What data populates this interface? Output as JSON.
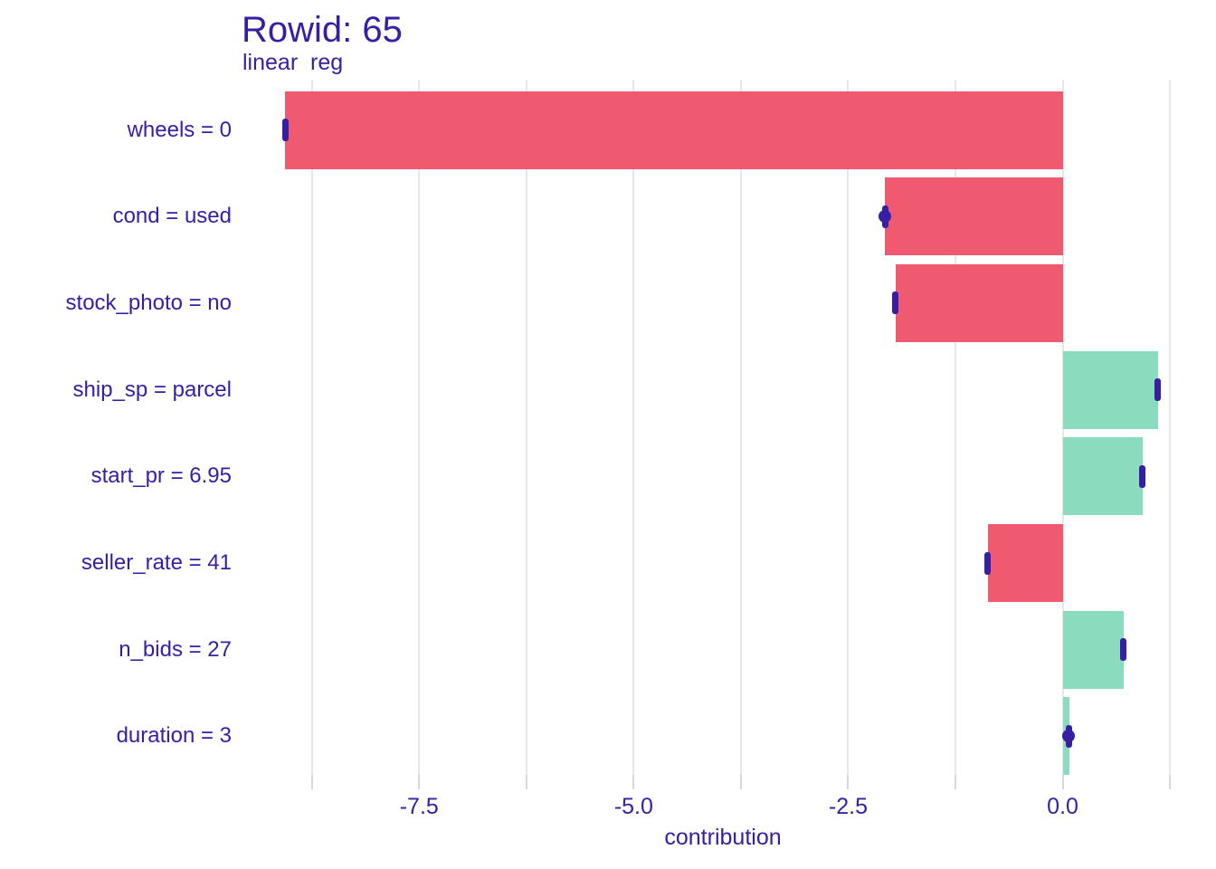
{
  "header": {
    "title": "Rowid: 65",
    "subtitle": "linear  reg"
  },
  "colors": {
    "accent_text": "#371ea3",
    "positive_bar": "#8bdcbe",
    "negative_bar": "#f05a71",
    "boxplot": "#371ea3",
    "gridline": "#e7e7e7",
    "axis_tick": "#d9d9d9",
    "background": "#ffffff"
  },
  "chart_data": {
    "type": "bar",
    "orientation": "horizontal",
    "title": "Rowid: 65",
    "subtitle": "linear  reg",
    "xlabel": "contribution",
    "xlim": [
      -9.58,
      1.66
    ],
    "x_ticks_major": [
      -7.5,
      -5.0,
      -2.5,
      0.0
    ],
    "x_tick_labels": [
      "-7.5",
      "-5.0",
      "-2.5",
      "0.0"
    ],
    "x_ticks_minor": [
      -8.75,
      -6.25,
      -3.75,
      -1.25,
      1.25
    ],
    "grid": true,
    "legend": "none",
    "categories": [
      "wheels = 0",
      "cond = used",
      "stock_photo = no",
      "ship_sp = parcel",
      "start_pr = 6.95",
      "seller_rate = 41",
      "n_bids = 27",
      "duration = 3"
    ],
    "values": [
      -9.06,
      -2.07,
      -1.95,
      1.11,
      0.93,
      -0.87,
      0.71,
      0.08
    ],
    "boxplots": [
      {
        "center": -9.06,
        "dot": false
      },
      {
        "center": -2.07,
        "dot": true
      },
      {
        "center": -1.95,
        "dot": false
      },
      {
        "center": 1.11,
        "dot": false
      },
      {
        "center": 0.93,
        "dot": false
      },
      {
        "center": -0.88,
        "dot": false
      },
      {
        "center": 0.71,
        "dot": false
      },
      {
        "center": 0.07,
        "dot": true
      }
    ]
  },
  "layout_note": "SHAP feature-contribution plot for observation Rowid 65, model: linear reg"
}
